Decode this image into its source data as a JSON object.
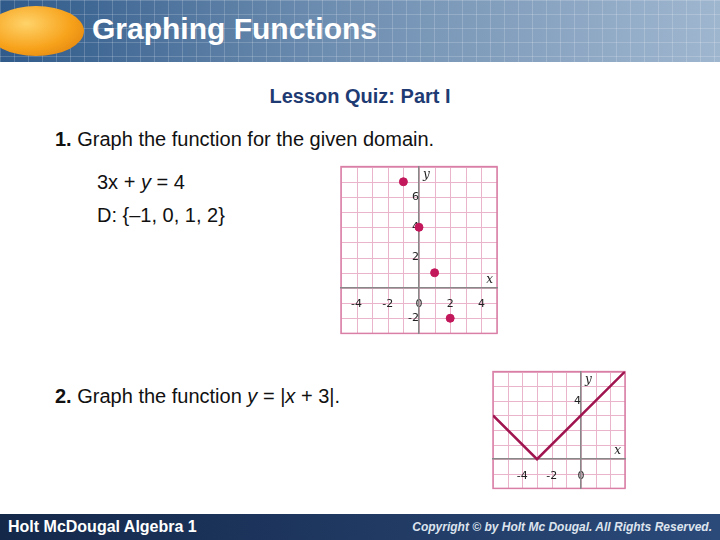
{
  "header": {
    "title": "Graphing Functions"
  },
  "quiz_title": "Lesson Quiz: Part I",
  "problems": [
    {
      "number": "1.",
      "text": "Graph the function for the given domain.",
      "lines": [
        "3x + y = 4",
        "D: {–1, 0, 1, 2}"
      ]
    },
    {
      "number": "2.",
      "text": "Graph the function y = |x + 3|."
    }
  ],
  "footer": {
    "left": "Holt McDougal Algebra 1",
    "right": "Copyright © by Holt Mc Dougal. All Rights Reserved."
  },
  "chart_data": [
    {
      "type": "scatter",
      "x": [
        -1,
        0,
        1,
        2
      ],
      "values": [
        7,
        4,
        1,
        -2
      ],
      "xlim": [
        -5,
        5
      ],
      "ylim": [
        -3,
        8
      ],
      "xticks": [
        -4,
        -2,
        0,
        2,
        4
      ],
      "yticks": [
        -2,
        2,
        4,
        6
      ],
      "x_label": "x",
      "y_label": "y",
      "grid": true,
      "color": "#c2185b",
      "marker": "circle"
    },
    {
      "type": "line",
      "x": [
        -6,
        -3,
        3
      ],
      "values": [
        3,
        0,
        6
      ],
      "xlim": [
        -6,
        3
      ],
      "ylim": [
        -2,
        6
      ],
      "xticks": [
        -4,
        -2,
        0
      ],
      "yticks": [
        4
      ],
      "x_label": "x",
      "y_label": "y",
      "grid": true,
      "color": "#a0144f",
      "line_style": "solid"
    }
  ]
}
